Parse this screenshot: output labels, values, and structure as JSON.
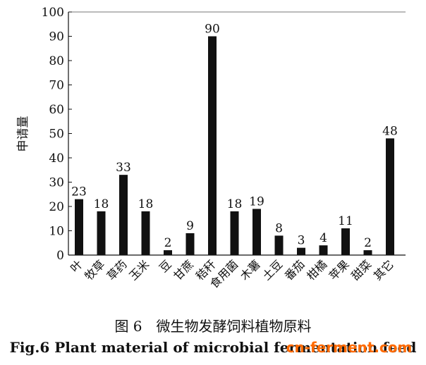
{
  "chart_data": {
    "type": "bar",
    "categories": [
      "叶",
      "牧草",
      "草药",
      "玉米",
      "豆",
      "甘蔗",
      "秸秆",
      "食用菌",
      "木薯",
      "土豆",
      "番茄",
      "柑橘",
      "苹果",
      "甜菜",
      "其它"
    ],
    "values": [
      23,
      18,
      33,
      18,
      2,
      9,
      90,
      18,
      19,
      8,
      3,
      4,
      11,
      2,
      48
    ],
    "data_labels": [
      "23",
      "18",
      "33",
      "18",
      "2",
      "9",
      "90",
      "18",
      "19",
      "8",
      "3",
      "4",
      "11",
      "2",
      "48"
    ],
    "ylabel": "申请量",
    "xlabel": "",
    "ylim": [
      0,
      100
    ],
    "yticks": [
      "0",
      "10",
      "20",
      "30",
      "40",
      "50",
      "60",
      "70",
      "80",
      "90",
      "100"
    ],
    "grid": false,
    "legend": "none",
    "bar_color": "#111111"
  },
  "caption": {
    "chinese": "图 6　微生物发酵饲料植物原料",
    "english": "Fig.6 Plant material of microbial fermentation feed"
  },
  "watermark": {
    "text": "cn-ferment.com",
    "color": "#ff6a00"
  }
}
